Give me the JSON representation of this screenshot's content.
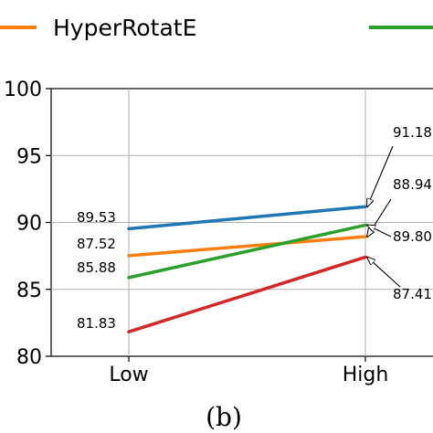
{
  "chart_data": {
    "type": "line",
    "categories": [
      "Low",
      "High"
    ],
    "series": [
      {
        "color": "#1f77b4",
        "values": [
          89.53,
          91.18
        ],
        "labels": [
          "89.53",
          "91.18"
        ]
      },
      {
        "name": "HyperRotatE",
        "color": "#ff7f0e",
        "values": [
          87.52,
          88.94
        ],
        "labels": [
          "87.52",
          "88.94"
        ]
      },
      {
        "color": "#2ca02c",
        "values": [
          85.88,
          89.8
        ],
        "labels": [
          "85.88",
          "89.80"
        ]
      },
      {
        "color": "#d62728",
        "values": [
          81.83,
          87.41
        ],
        "labels": [
          "81.83",
          "87.41"
        ]
      }
    ],
    "ylim": [
      80,
      100
    ],
    "yticks": [
      80,
      85,
      90,
      95,
      100
    ],
    "grid": true,
    "legend": {
      "placement": "top",
      "entries": [
        {
          "label": "HyperRotatE",
          "color": "#ff7f0e"
        },
        {
          "label": "",
          "color": "#2ca02c"
        }
      ]
    },
    "annotations": "left values labelled beside Low points; right values labelled with arrows pointing to High points",
    "caption": "(b)"
  }
}
